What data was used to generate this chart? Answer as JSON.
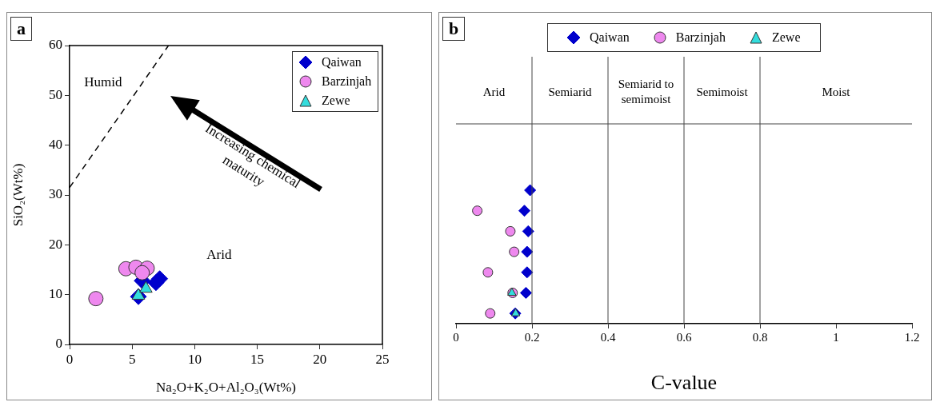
{
  "chart_data": [
    {
      "type": "scatter",
      "title": "a",
      "xlabel": "Na₂O+K₂O+Al₂O₃(Wt%)",
      "ylabel": "SiO₂(Wt%)",
      "xlim": [
        0,
        25
      ],
      "xticks": [
        0,
        5,
        10,
        15,
        20,
        25
      ],
      "ylim": [
        0,
        60
      ],
      "yticks": [
        0,
        10,
        20,
        30,
        40,
        50,
        60
      ],
      "grid": false,
      "legend": "top right",
      "series": [
        {
          "name": "Qaiwan",
          "color": "#0000cc",
          "marker": "diamond",
          "x": [
            5.8,
            7.2,
            6.9,
            5.5
          ],
          "values": [
            12.8,
            13.2,
            12.4,
            9.6
          ]
        },
        {
          "name": "Barzinjah",
          "color": "#ee88ee",
          "marker": "circle",
          "x": [
            2.1,
            4.5,
            5.3,
            6.2,
            5.8
          ],
          "values": [
            9.2,
            15.2,
            15.5,
            15.3,
            14.4
          ]
        },
        {
          "name": "Zewe",
          "color": "#33dddd",
          "marker": "triangle",
          "x": [
            5.5,
            6.1
          ],
          "values": [
            9.8,
            11.2
          ]
        },
        {
          "type": "line",
          "color": "#000000",
          "line_style": "dashed",
          "marker": "none",
          "x": [
            0,
            7.9
          ],
          "values": [
            31.5,
            60
          ]
        }
      ],
      "annotations": [
        "Humid",
        "Arid",
        "Increasing chemical maturity"
      ]
    },
    {
      "type": "scatter",
      "title": "b",
      "orientation": "horizontal",
      "xlabel": "C-value",
      "xlim": [
        0,
        1.2
      ],
      "xticks": [
        0,
        0.2,
        0.4,
        0.6,
        0.8,
        1,
        1.2
      ],
      "grid": false,
      "legend": "top",
      "tick_labels": "x",
      "categories": [
        null,
        null,
        null,
        null,
        null,
        null,
        null,
        null,
        null,
        null,
        null,
        null,
        null
      ],
      "series": [
        {
          "name": "Qaiwan",
          "color": "#0000cc",
          "marker": "diamond",
          "values": [
            null,
            null,
            null,
            null,
            null,
            null,
            0.195,
            0.18,
            0.19,
            0.187,
            0.187,
            0.184,
            0.156
          ]
        },
        {
          "name": "Barzinjah",
          "color": "#ee88ee",
          "marker": "circle",
          "values": [
            null,
            null,
            null,
            null,
            null,
            null,
            null,
            0.056,
            0.143,
            0.153,
            0.084,
            0.149,
            0.09
          ]
        },
        {
          "name": "Zewe",
          "color": "#33dddd",
          "marker": "triangle",
          "values": [
            null,
            null,
            null,
            null,
            null,
            null,
            null,
            null,
            null,
            null,
            null,
            0.147,
            0.157
          ]
        }
      ],
      "ref_lines": [
        {
          "axis": "x",
          "value": 0.2
        },
        {
          "axis": "x",
          "value": 0.4
        },
        {
          "axis": "x",
          "value": 0.6
        },
        {
          "axis": "x",
          "value": 0.8
        }
      ],
      "annotations": [
        "Arid",
        "Semiarid",
        "Semiarid to semimoist",
        "Semimoist",
        "Moist"
      ]
    }
  ]
}
